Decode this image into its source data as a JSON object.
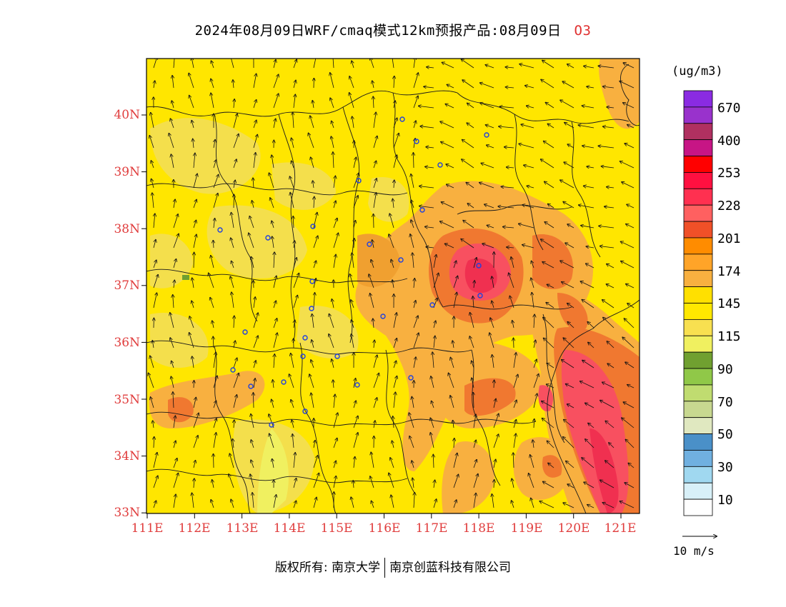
{
  "title": {
    "text": "2024年08月09日WRF/cmaq模式12km预报产品:08月09日",
    "pollutant": "O3"
  },
  "axes": {
    "lat_labels": [
      "40N",
      "39N",
      "38N",
      "37N",
      "36N",
      "35N",
      "34N",
      "33N"
    ],
    "lon_labels": [
      "111E",
      "112E",
      "113E",
      "114E",
      "115E",
      "116E",
      "117E",
      "118E",
      "119E",
      "120E",
      "121E"
    ],
    "lat_range": [
      33,
      41
    ],
    "lon_range": [
      111,
      121.4
    ]
  },
  "colorbar": {
    "unit": "(ug/m3)",
    "labels": [
      "670",
      "400",
      "253",
      "228",
      "201",
      "174",
      "145",
      "115",
      "90",
      "70",
      "50",
      "30",
      "10"
    ],
    "colors": [
      "#8a2be2",
      "#9932cc",
      "#b03060",
      "#c71585",
      "#ff0000",
      "#ff1040",
      "#ff3050",
      "#ff6060",
      "#f05028",
      "#ff8c00",
      "#ffa428",
      "#f8b040",
      "#ffe000",
      "#ffe800",
      "#f8e050",
      "#f0f060",
      "#70a030",
      "#90c848",
      "#c0dc70",
      "#c8d890",
      "#e0e8c0",
      "#4a90c8",
      "#70b0e0",
      "#a0d8f0",
      "#d8f0f8",
      "#ffffff"
    ]
  },
  "vector_legend": {
    "label": "10 m/s"
  },
  "copyright": {
    "left": "版权所有: 南京大学",
    "right": "南京创蓝科技有限公司"
  }
}
